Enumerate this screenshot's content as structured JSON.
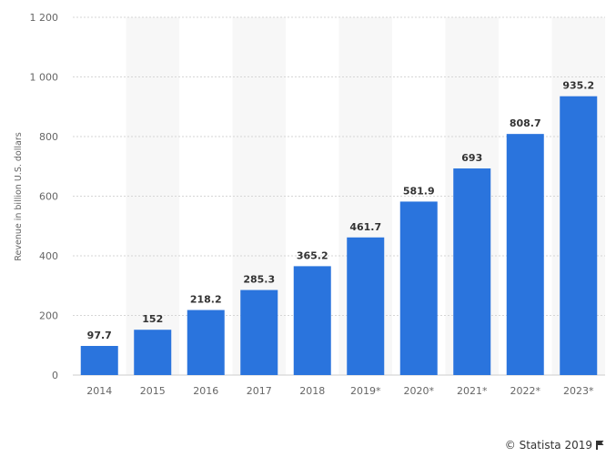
{
  "chart_data": {
    "type": "bar",
    "categories": [
      "2014",
      "2015",
      "2016",
      "2017",
      "2018",
      "2019*",
      "2020*",
      "2021*",
      "2022*",
      "2023*"
    ],
    "values": [
      97.7,
      152,
      218.2,
      285.3,
      365.2,
      461.7,
      581.9,
      693,
      808.7,
      935.2
    ],
    "value_labels": [
      "97.7",
      "152",
      "218.2",
      "285.3",
      "365.2",
      "461.7",
      "581.9",
      "693",
      "808.7",
      "935.2"
    ],
    "ylabel": "Revenue in billion U.S. dollars",
    "ylim": [
      0,
      1200
    ],
    "yticks": [
      0,
      200,
      400,
      600,
      800,
      1000,
      1200
    ],
    "ytick_labels": [
      "0",
      "200",
      "400",
      "600",
      "800",
      "1 000",
      "1 200"
    ],
    "grid": true,
    "bar_color": "#2a74dd",
    "band_color": "#f7f7f7"
  },
  "credit": {
    "text": "© Statista 2019",
    "icon": "flag-icon"
  }
}
